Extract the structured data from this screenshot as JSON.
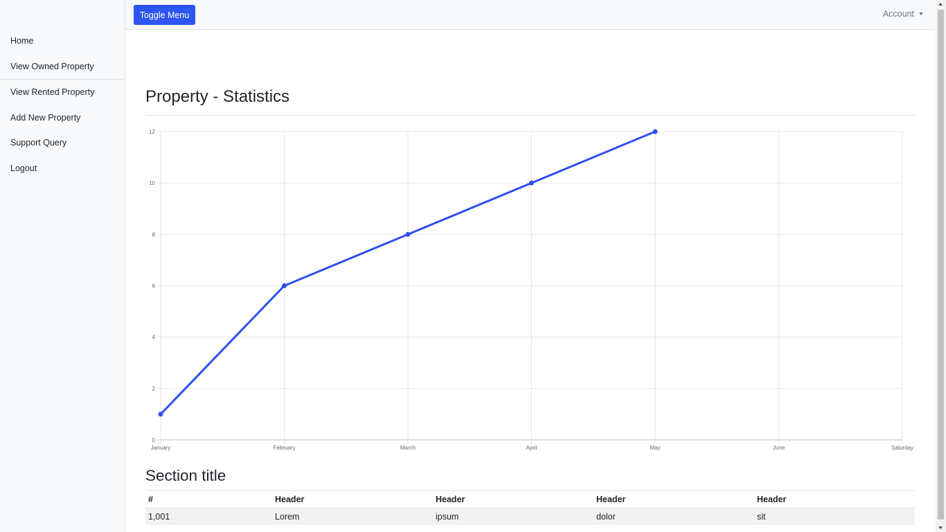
{
  "sidebar": {
    "items": [
      {
        "label": "Home"
      },
      {
        "label": "View Owned Property"
      },
      {
        "label": "View Rented Property"
      },
      {
        "label": "Add New Property"
      },
      {
        "label": "Support Query"
      },
      {
        "label": "Logout"
      }
    ]
  },
  "topnav": {
    "toggle_label": "Toggle Menu",
    "account_label": "Account"
  },
  "main": {
    "title": "Property - Statistics",
    "section_title": "Section title"
  },
  "chart_data": {
    "type": "line",
    "categories": [
      "January",
      "February",
      "March",
      "April",
      "May",
      "June",
      "Saturday"
    ],
    "series": [
      {
        "values": [
          1,
          6,
          8,
          10,
          12,
          null,
          null
        ],
        "color": "#2e4ff0"
      }
    ],
    "y_ticks": [
      "0",
      "2",
      "4",
      "6",
      "8",
      "10",
      "12"
    ],
    "ylim": [
      0,
      12
    ],
    "grid": true,
    "title": "",
    "xlabel": "",
    "ylabel": ""
  },
  "table": {
    "headers": [
      "#",
      "Header",
      "Header",
      "Header",
      "Header"
    ],
    "rows": [
      [
        "1,001",
        "Lorem",
        "ipsum",
        "dolor",
        "sit"
      ]
    ]
  }
}
